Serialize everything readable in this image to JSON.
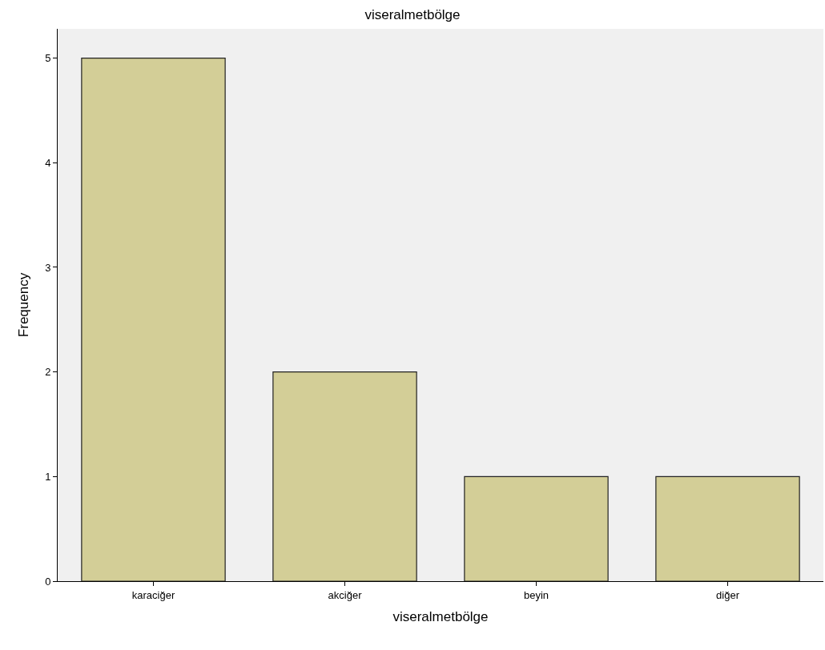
{
  "chart_data": {
    "type": "bar",
    "title": "viseralmetbölge",
    "xlabel": "viseralmetbölge",
    "ylabel": "Frequency",
    "categories": [
      "karaciğer",
      "akciğer",
      "beyin",
      "diğer"
    ],
    "values": [
      5,
      2,
      1,
      1
    ],
    "color": "#d3ce97",
    "ylim": [
      0,
      5.28
    ],
    "yticks": [
      0,
      1,
      2,
      3,
      4,
      5
    ],
    "grid": false,
    "legend": false
  }
}
